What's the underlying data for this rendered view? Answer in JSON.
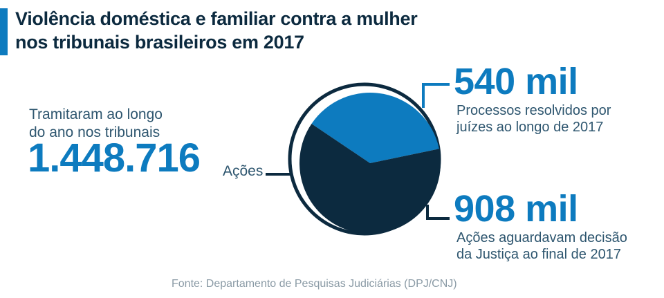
{
  "title": {
    "line1": "Violência doméstica e familiar contra a mulher",
    "line2": "nos tribunais brasileiros em 2017"
  },
  "total": {
    "label_line1": "Tramitaram ao longo",
    "label_line2": "do ano nos tribunais",
    "value": "1.448.716",
    "unit": "Ações"
  },
  "resolved": {
    "value": "540 mil",
    "desc_line1": "Processos resolvidos por",
    "desc_line2": "juízes ao longo de 2017"
  },
  "pending": {
    "value": "908 mil",
    "desc_line1": "Ações aguardavam decisão",
    "desc_line2": "da Justiça ao final de 2017"
  },
  "source": "Fonte: Departamento de Pesquisas Judiciárias (DPJ/CNJ)",
  "colors": {
    "accent": "#0d7bbf",
    "dark": "#0c2a3f",
    "text": "#2e566f"
  },
  "chart_data": {
    "type": "pie",
    "title": "Violência doméstica e familiar contra a mulher nos tribunais brasileiros em 2017",
    "total": 1448716,
    "slices": [
      {
        "name": "Processos resolvidos por juízes ao longo de 2017",
        "label": "540 mil",
        "value": 540000,
        "color": "#0d7bbf"
      },
      {
        "name": "Ações aguardavam decisão da Justiça ao final de 2017",
        "label": "908 mil",
        "value": 908000,
        "color": "#0c2a3f"
      }
    ]
  }
}
